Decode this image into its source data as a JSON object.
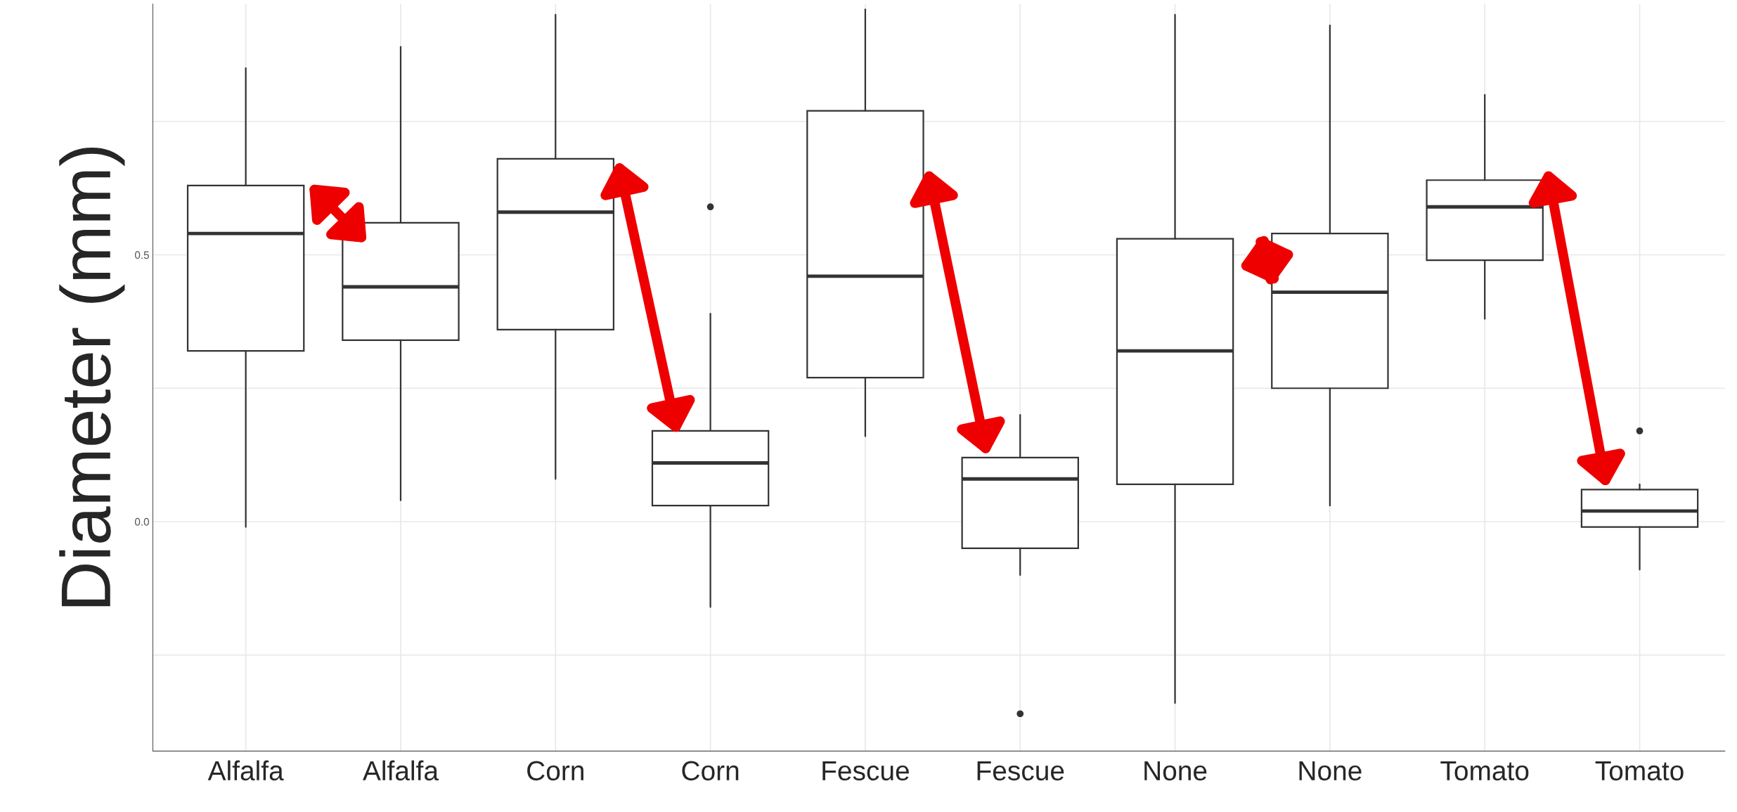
{
  "chart_data": {
    "type": "box",
    "ylabel": "Diameter (mm)",
    "categories": [
      "Alfalfa",
      "Alfalfa",
      "Corn",
      "Corn",
      "Fescue",
      "Fescue",
      "None",
      "None",
      "Tomato",
      "Tomato"
    ],
    "boxes": [
      {
        "low": -0.01,
        "q1": 0.32,
        "median": 0.54,
        "q3": 0.63,
        "high": 0.85
      },
      {
        "low": 0.04,
        "q1": 0.34,
        "median": 0.44,
        "q3": 0.56,
        "high": 0.89
      },
      {
        "low": 0.08,
        "q1": 0.36,
        "median": 0.58,
        "q3": 0.68,
        "high": 0.95
      },
      {
        "low": -0.16,
        "q1": 0.03,
        "median": 0.11,
        "q3": 0.17,
        "high": 0.39,
        "outliers": [
          0.59
        ]
      },
      {
        "low": 0.16,
        "q1": 0.27,
        "median": 0.46,
        "q3": 0.77,
        "high": 0.96
      },
      {
        "low": -0.1,
        "q1": -0.05,
        "median": 0.08,
        "q3": 0.12,
        "high": 0.2,
        "outliers": [
          -0.36
        ]
      },
      {
        "low": -0.34,
        "q1": 0.07,
        "median": 0.32,
        "q3": 0.53,
        "high": 0.95
      },
      {
        "low": 0.03,
        "q1": 0.25,
        "median": 0.43,
        "q3": 0.54,
        "high": 0.93
      },
      {
        "low": 0.38,
        "q1": 0.49,
        "median": 0.59,
        "q3": 0.64,
        "high": 0.8
      },
      {
        "low": -0.09,
        "q1": -0.01,
        "median": 0.02,
        "q3": 0.06,
        "high": 0.07,
        "outliers": [
          0.17
        ]
      }
    ],
    "ylim": [
      -0.43,
      0.97
    ],
    "yticks": [
      {
        "value": -0.25,
        "label": null
      },
      {
        "value": 0,
        "label": "0.0"
      },
      {
        "value": 0.25,
        "label": null
      },
      {
        "value": 0.5,
        "label": "0.5"
      },
      {
        "value": 0.75,
        "label": null
      }
    ],
    "grid": true
  }
}
